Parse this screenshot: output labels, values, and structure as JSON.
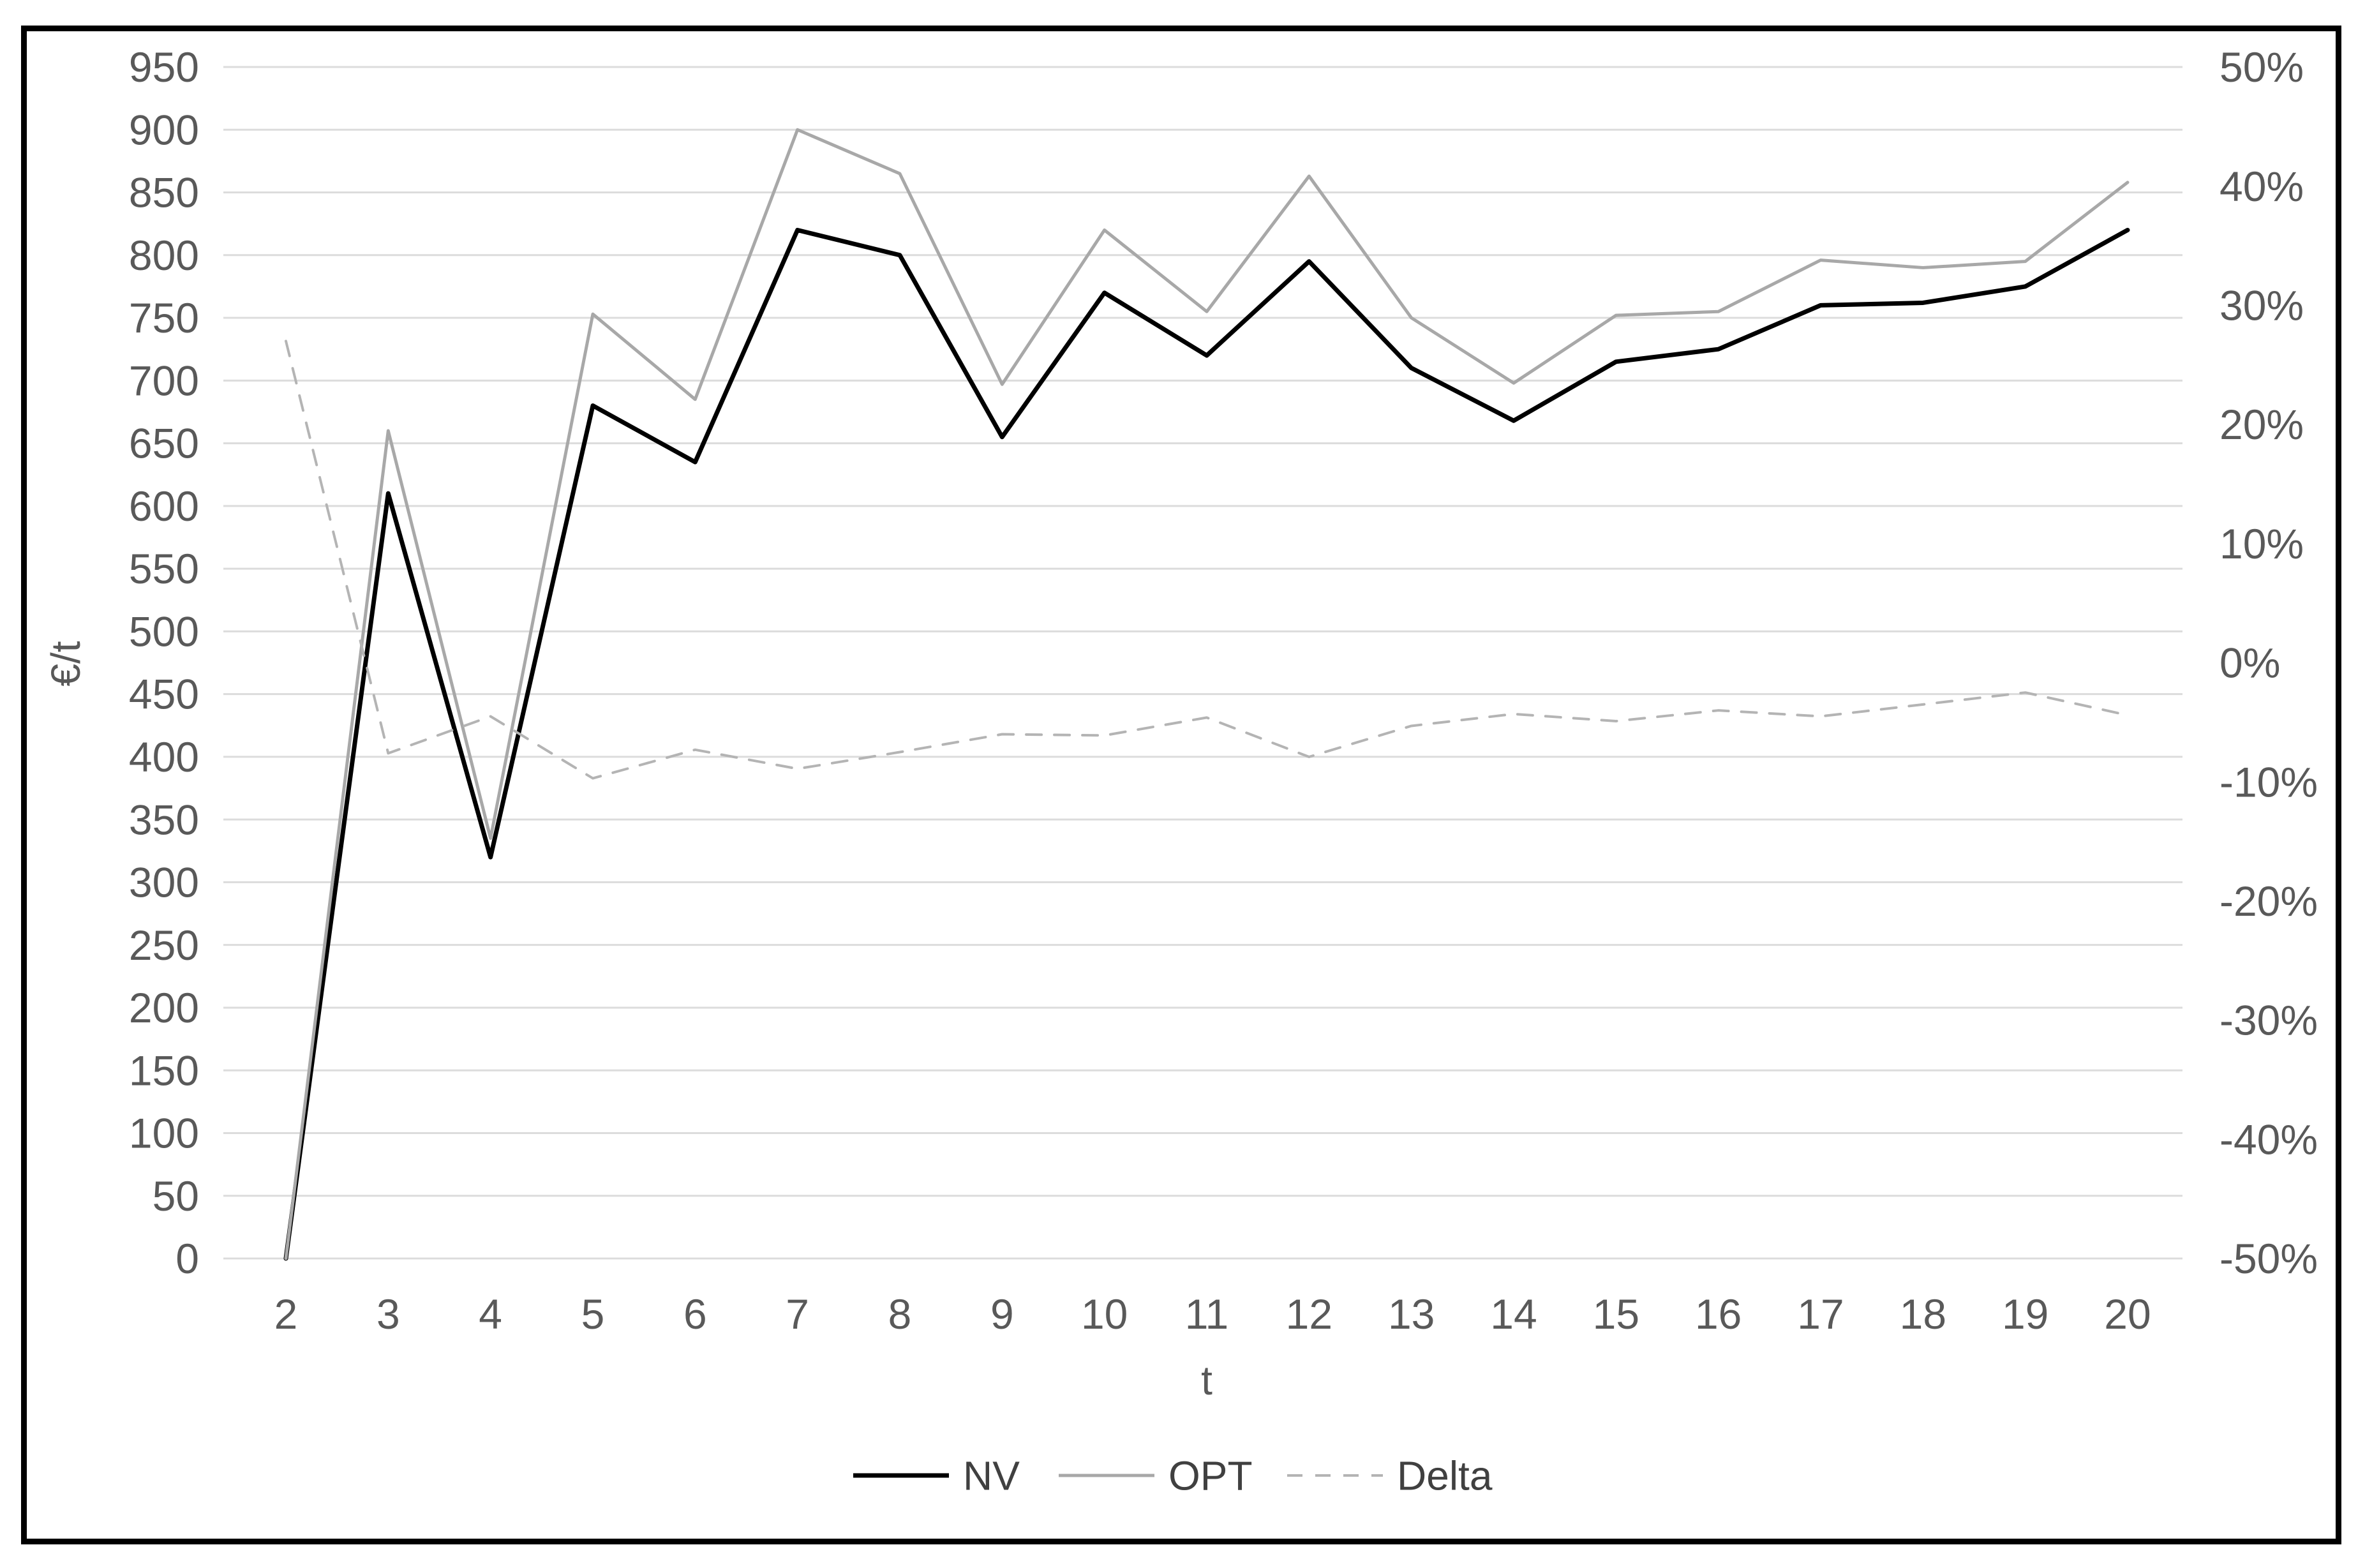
{
  "chart_data": {
    "type": "line",
    "x": [
      2,
      3,
      4,
      5,
      6,
      7,
      8,
      9,
      10,
      11,
      12,
      13,
      14,
      15,
      16,
      17,
      18,
      19,
      20
    ],
    "x_tick_labels": [
      "2",
      "3",
      "4",
      "5",
      "6",
      "7",
      "8",
      "9",
      "10",
      "11",
      "12",
      "13",
      "14",
      "15",
      "16",
      "17",
      "18",
      "19",
      "20"
    ],
    "xlabel": "t",
    "ylabel_left": "€/t",
    "left_axis": {
      "min": 0,
      "max": 950,
      "step": 50,
      "tick_labels": [
        "0",
        "50",
        "100",
        "150",
        "200",
        "250",
        "300",
        "350",
        "400",
        "450",
        "500",
        "550",
        "600",
        "650",
        "700",
        "750",
        "800",
        "850",
        "900",
        "950"
      ]
    },
    "right_axis": {
      "min": -50,
      "max": 50,
      "step": 10,
      "tick_labels": [
        "-50%",
        "-40%",
        "-30%",
        "-20%",
        "-10%",
        "0%",
        "10%",
        "20%",
        "30%",
        "40%",
        "50%"
      ]
    },
    "grid": "horizontal-only",
    "legend_position": "bottom-center",
    "series": [
      {
        "name": "NV",
        "axis": "left",
        "style": "solid",
        "color": "#000000",
        "values": [
          0,
          610,
          320,
          680,
          635,
          820,
          800,
          655,
          770,
          720,
          795,
          710,
          668,
          715,
          725,
          760,
          762,
          775,
          820
        ]
      },
      {
        "name": "OPT",
        "axis": "left",
        "style": "solid",
        "color": "#a8a8a8",
        "values": [
          0,
          660,
          335,
          753,
          685,
          900,
          865,
          697,
          820,
          755,
          863,
          750,
          698,
          752,
          755,
          796,
          790,
          795,
          858
        ]
      },
      {
        "name": "Delta",
        "axis": "right",
        "style": "dashed",
        "color": "#b4b4b4",
        "values_percent": [
          27.0,
          -7.6,
          -4.5,
          -9.7,
          -7.3,
          -8.9,
          -7.5,
          -6.0,
          -6.1,
          -4.6,
          -7.9,
          -5.3,
          -4.3,
          -4.9,
          -4.0,
          -4.5,
          -3.5,
          -2.5,
          -4.4
        ]
      }
    ]
  },
  "colors": {
    "gridline": "#dcdcdc",
    "tick_text": "#595959",
    "legend_text": "#404040",
    "border": "#000000",
    "background": "#ffffff"
  }
}
